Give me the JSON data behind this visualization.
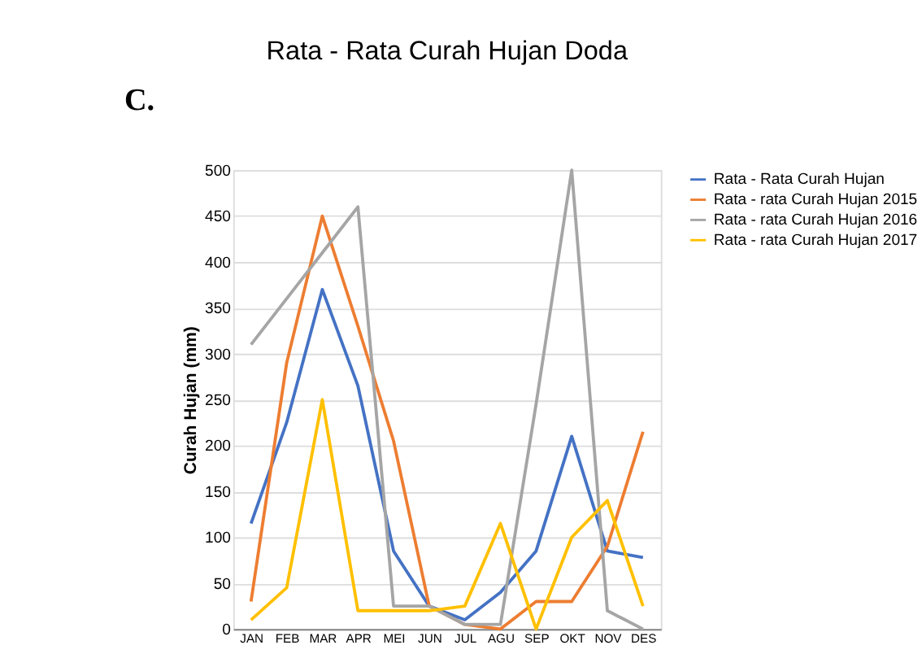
{
  "chart_data": {
    "type": "line",
    "title": "Rata - Rata Curah Hujan Doda",
    "ylabel": "Curah Hujan (mm)",
    "annotations": [
      "C."
    ],
    "categories": [
      "JAN",
      "FEB",
      "MAR",
      "APR",
      "MEI",
      "JUN",
      "JUL",
      "AGU",
      "SEP",
      "OKT",
      "NOV",
      "DES"
    ],
    "series": [
      {
        "name": "Rata - Rata Curah Hujan",
        "color": "#4472c4",
        "values": [
          115,
          225,
          370,
          265,
          85,
          25,
          10,
          40,
          85,
          210,
          85,
          78
        ]
      },
      {
        "name": "Rata - rata Curah Hujan 2015",
        "color": "#ed7d31",
        "values": [
          30,
          290,
          450,
          330,
          205,
          25,
          5,
          0,
          30,
          30,
          90,
          215
        ]
      },
      {
        "name": "Rata - rata Curah Hujan 2016",
        "color": "#a5a5a5",
        "values": [
          310,
          360,
          410,
          460,
          25,
          25,
          5,
          5,
          245,
          500,
          20,
          0
        ]
      },
      {
        "name": "Rata - rata Curah Hujan 2017",
        "color": "#ffc000",
        "values": [
          10,
          45,
          250,
          20,
          20,
          20,
          25,
          115,
          0,
          100,
          140,
          25
        ]
      }
    ],
    "ylim": [
      0,
      500
    ],
    "yticks": [
      0,
      50,
      100,
      150,
      200,
      250,
      300,
      350,
      400,
      450,
      500
    ],
    "grid": "y",
    "legend": "right",
    "marker": "none",
    "line_style": "solid"
  }
}
